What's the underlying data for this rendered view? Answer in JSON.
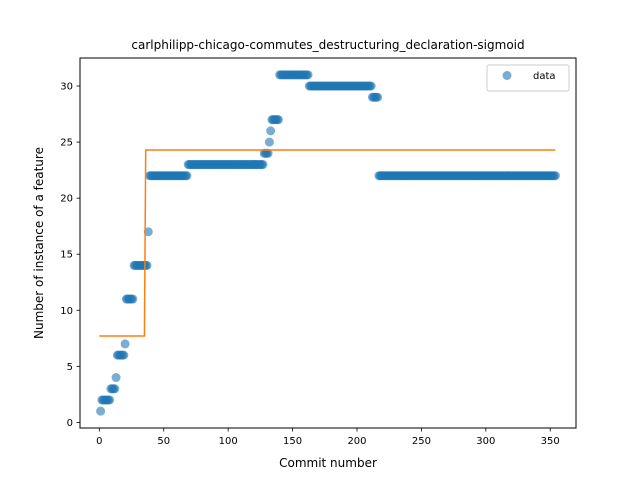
{
  "chart_data": {
    "type": "scatter",
    "title": "carlphilipp-chicago-commutes_destructuring_declaration-sigmoid",
    "xlabel": "Commit number",
    "ylabel": "Number of instance of a feature",
    "xlim": [
      -15,
      370
    ],
    "ylim": [
      -0.5,
      32.5
    ],
    "xticks": [
      0,
      50,
      100,
      150,
      200,
      250,
      300,
      350
    ],
    "yticks": [
      0,
      5,
      10,
      15,
      20,
      25,
      30
    ],
    "grid": false,
    "legend": {
      "placement": "top-right",
      "entries": [
        "data"
      ]
    },
    "colors": {
      "data": "#1f77b4",
      "fit": "#ff7f0e"
    },
    "data_segments": [
      {
        "x_start": 1,
        "x_end": 1,
        "y": 1
      },
      {
        "x_start": 2,
        "x_end": 8,
        "y": 2
      },
      {
        "x_start": 9,
        "x_end": 12,
        "y": 3
      },
      {
        "x_start": 13,
        "x_end": 13,
        "y": 4
      },
      {
        "x_start": 14,
        "x_end": 19,
        "y": 6
      },
      {
        "x_start": 20,
        "x_end": 20,
        "y": 7
      },
      {
        "x_start": 21,
        "x_end": 26,
        "y": 11
      },
      {
        "x_start": 27,
        "x_end": 37,
        "y": 14
      },
      {
        "x_start": 38,
        "x_end": 38,
        "y": 17
      },
      {
        "x_start": 39,
        "x_end": 68,
        "y": 22
      },
      {
        "x_start": 69,
        "x_end": 127,
        "y": 23
      },
      {
        "x_start": 128,
        "x_end": 131,
        "y": 24
      },
      {
        "x_start": 132,
        "x_end": 132,
        "y": 25
      },
      {
        "x_start": 133,
        "x_end": 133,
        "y": 26
      },
      {
        "x_start": 134,
        "x_end": 139,
        "y": 27
      },
      {
        "x_start": 140,
        "x_end": 162,
        "y": 31
      },
      {
        "x_start": 163,
        "x_end": 211,
        "y": 30
      },
      {
        "x_start": 212,
        "x_end": 216,
        "y": 29
      },
      {
        "x_start": 217,
        "x_end": 354,
        "y": 22
      }
    ],
    "fit": [
      {
        "x": 0,
        "y": 7.7
      },
      {
        "x": 35,
        "y": 7.7
      },
      {
        "x": 36,
        "y": 24.3
      },
      {
        "x": 354,
        "y": 24.3
      }
    ]
  }
}
